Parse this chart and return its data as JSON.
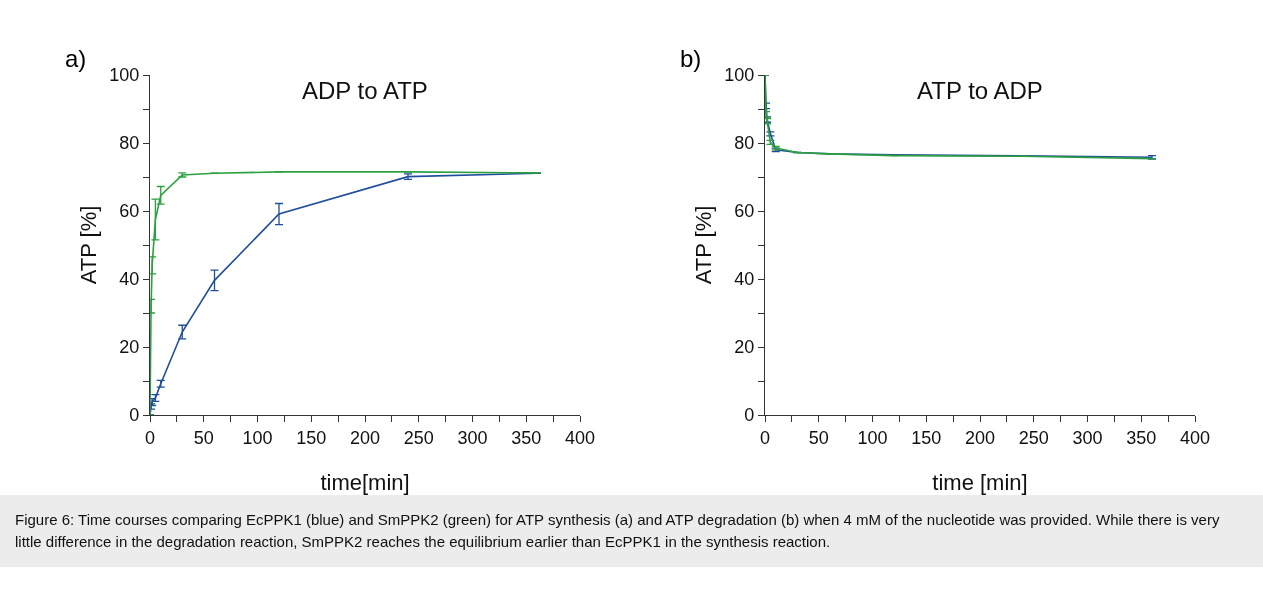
{
  "chart_data": [
    {
      "type": "line",
      "title": "ADP to ATP",
      "xlabel": "time[min]",
      "ylabel": "ATP [%]",
      "annotations": [
        "a)"
      ],
      "xlim": [
        0,
        400
      ],
      "xticks": [
        0,
        {
          "value": 25,
          "label": null
        },
        50,
        {
          "value": 75,
          "label": null
        },
        100,
        {
          "value": 125,
          "label": null
        },
        150,
        {
          "value": 175,
          "label": null
        },
        200,
        {
          "value": 225,
          "label": null
        },
        250,
        {
          "value": 275,
          "label": null
        },
        300,
        {
          "value": 325,
          "label": null
        },
        350,
        {
          "value": 375,
          "label": null
        },
        400
      ],
      "ylim": [
        0,
        100
      ],
      "yticks": [
        0,
        {
          "value": 10,
          "label": null
        },
        20,
        {
          "value": 30,
          "label": null
        },
        40,
        {
          "value": 50,
          "label": null
        },
        60,
        {
          "value": 70,
          "label": null
        },
        80,
        {
          "value": 90,
          "label": null
        },
        100
      ],
      "grid": false,
      "line_style": "solid",
      "x": [
        0,
        1,
        2,
        5,
        10,
        30,
        60,
        120,
        240,
        360
      ],
      "series": [
        {
          "color": "#1f4e9c",
          "values": [
            0,
            2.5,
            3.8,
            5,
            9.2,
            24.4,
            39.6,
            59.1,
            70.1,
            71.1
          ],
          "errors": [
            null,
            0.8,
            1,
            1,
            1,
            2,
            3,
            3.1,
            0.8,
            null
          ]
        },
        {
          "color": "#2ca040",
          "values": [
            0,
            32,
            44,
            57.5,
            64.6,
            70.6,
            71.1,
            71.5,
            71.5,
            71.2
          ],
          "errors": [
            null,
            2,
            2.5,
            6,
            2.6,
            0.6,
            null,
            null,
            null,
            null
          ]
        }
      ]
    },
    {
      "type": "line",
      "title": "ATP to ADP",
      "xlabel": "time [min]",
      "ylabel": "ATP [%]",
      "annotations": [
        "b)",
        "Figure 6: Time courses comparing EcPPK1 (blue) and SmPPK2 (green) for ATP synthesis (a) and ATP degradation (b) when 4 mM of the nucleotide was provided. While there is very little difference in the degradation reaction, SmPPK2 reaches the equilibrium earlier than EcPPK1 in the synthesis reaction."
      ],
      "xlim": [
        0,
        400
      ],
      "xticks": [
        0,
        {
          "value": 25,
          "label": null
        },
        50,
        {
          "value": 75,
          "label": null
        },
        100,
        {
          "value": 125,
          "label": null
        },
        150,
        {
          "value": 175,
          "label": null
        },
        200,
        {
          "value": 225,
          "label": null
        },
        250,
        {
          "value": 275,
          "label": null
        },
        300,
        {
          "value": 325,
          "label": null
        },
        350,
        {
          "value": 375,
          "label": null
        },
        400
      ],
      "ylim": [
        0,
        100
      ],
      "yticks": [
        0,
        {
          "value": 10,
          "label": null
        },
        20,
        {
          "value": 30,
          "label": null
        },
        40,
        {
          "value": 50,
          "label": null
        },
        60,
        {
          "value": 70,
          "label": null
        },
        80,
        {
          "value": 90,
          "label": null
        },
        100
      ],
      "grid": false,
      "line_style": "solid",
      "x": [
        0,
        1,
        2,
        5,
        10,
        30,
        60,
        120,
        240,
        360
      ],
      "series": [
        {
          "color": "#1f4e9c",
          "values": [
            100,
            90.9,
            86.9,
            82.7,
            78,
            77.2,
            76.8,
            76.5,
            76.2,
            75.8
          ],
          "errors": [
            null,
            0.8,
            0.8,
            0.6,
            0.5,
            null,
            null,
            null,
            null,
            0.5
          ]
        },
        {
          "color": "#2ca040",
          "values": [
            100,
            88.4,
            86.4,
            80.2,
            78.5,
            77.2,
            76.8,
            76.3,
            76.1,
            75.4
          ],
          "errors": [
            null,
            0.8,
            0.8,
            0.6,
            0.5,
            null,
            null,
            null,
            null,
            null
          ]
        }
      ]
    }
  ]
}
